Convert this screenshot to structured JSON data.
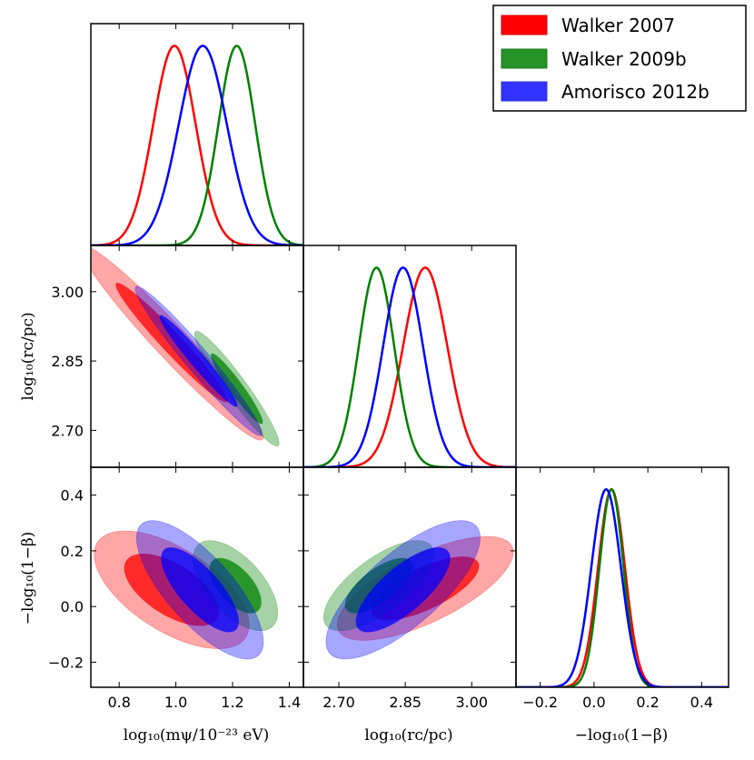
{
  "chart_data": {
    "type": "corner",
    "series_colors": {
      "walker2007": "#ff0000",
      "walker2009b": "#008000",
      "amorisco2012b": "#0000ff"
    },
    "legend": [
      {
        "key": "walker2007",
        "label": "Walker 2007",
        "color": "#ff0000"
      },
      {
        "key": "walker2009b",
        "label": "Walker 2009b",
        "color": "#008000"
      },
      {
        "key": "amorisco2012b",
        "label": "Amorisco 2012b",
        "color": "#0000ff"
      }
    ],
    "parameters": [
      {
        "key": "m",
        "label": "log₁₀(mψ/10⁻²³ eV)",
        "range": [
          0.7,
          1.45
        ],
        "ticks": [
          0.8,
          1.0,
          1.2,
          1.4
        ],
        "tick_labels": [
          "0.8",
          "1.0",
          "1.2",
          "1.4"
        ]
      },
      {
        "key": "rc",
        "label": "log₁₀(rᴄ/pc)",
        "range": [
          2.62,
          3.1
        ],
        "ticks": [
          2.7,
          2.85,
          3.0
        ],
        "tick_labels": [
          "2.70",
          "2.85",
          "3.00"
        ]
      },
      {
        "key": "beta",
        "label": "−log₁₀(1−β)",
        "range": [
          -0.29,
          0.5
        ],
        "ticks": [
          -0.2,
          0.0,
          0.2,
          0.4
        ],
        "tick_labels": [
          "−0.2",
          "0.0",
          "0.2",
          "0.4"
        ]
      }
    ],
    "marginals": {
      "m": {
        "walker2007": {
          "mean": 0.995,
          "sd": 0.075
        },
        "walker2009b": {
          "mean": 1.215,
          "sd": 0.065
        },
        "amorisco2012b": {
          "mean": 1.095,
          "sd": 0.085
        }
      },
      "rc": {
        "walker2007": {
          "mean": 2.895,
          "sd": 0.05
        },
        "walker2009b": {
          "mean": 2.785,
          "sd": 0.04
        },
        "amorisco2012b": {
          "mean": 2.845,
          "sd": 0.045
        }
      },
      "beta": {
        "walker2007": {
          "mean": 0.065,
          "sd": 0.05
        },
        "walker2009b": {
          "mean": 0.065,
          "sd": 0.045
        },
        "amorisco2012b": {
          "mean": 0.045,
          "sd": 0.055
        }
      }
    },
    "contours": {
      "rc_vs_m": {
        "walker2007": {
          "mean": [
            0.985,
            2.89
          ],
          "sd": [
            0.13,
            0.085
          ],
          "rho": -0.97
        },
        "walker2009b": {
          "mean": [
            1.215,
            2.79
          ],
          "sd": [
            0.06,
            0.05
          ],
          "rho": -0.95
        },
        "amorisco2012b": {
          "mean": [
            1.08,
            2.85
          ],
          "sd": [
            0.09,
            0.065
          ],
          "rho": -0.97
        }
      },
      "beta_vs_m": {
        "walker2007": {
          "mean": [
            0.985,
            0.06
          ],
          "sd": [
            0.11,
            0.085
          ],
          "rho": -0.6
        },
        "walker2009b": {
          "mean": [
            1.21,
            0.075
          ],
          "sd": [
            0.06,
            0.065
          ],
          "rho": -0.6
        },
        "amorisco2012b": {
          "mean": [
            1.085,
            0.06
          ],
          "sd": [
            0.09,
            0.1
          ],
          "rho": -0.75
        }
      },
      "beta_vs_rc": {
        "walker2007": {
          "mean": [
            2.895,
            0.065
          ],
          "sd": [
            0.08,
            0.075
          ],
          "rho": 0.7
        },
        "walker2009b": {
          "mean": [
            2.79,
            0.075
          ],
          "sd": [
            0.05,
            0.065
          ],
          "rho": 0.7
        },
        "amorisco2012b": {
          "mean": [
            2.845,
            0.06
          ],
          "sd": [
            0.07,
            0.1
          ],
          "rho": 0.75
        }
      }
    },
    "contour_levels": [
      "68%",
      "95%"
    ]
  }
}
